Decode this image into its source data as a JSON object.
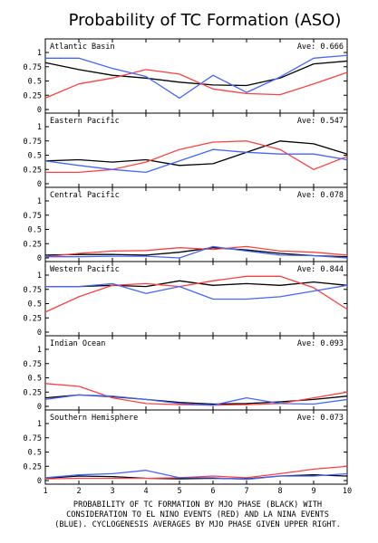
{
  "figure": {
    "title": "Probability of TC Formation (ASO)",
    "caption": [
      "PROBABILITY OF TC FORMATION BY MJO PHASE (BLACK) WITH",
      "CONSIDERATION TO EL NINO EVENTS (RED) AND LA NINA EVENTS",
      "(BLUE). CYCLOGENESIS AVERAGES BY MJO PHASE GIVEN UPPER RIGHT."
    ],
    "x_ticks": [
      "1",
      "2",
      "3",
      "4",
      "5",
      "6",
      "7",
      "8",
      "9",
      "10"
    ]
  },
  "chart_data": [
    {
      "type": "line",
      "title": "Atlantic Basin",
      "annotation": "Ave: 0.666",
      "x": [
        1,
        2,
        3,
        4,
        5,
        6,
        7,
        8,
        9,
        10
      ],
      "ylim": [
        0,
        1
      ],
      "yticks": [
        "0",
        "0.25",
        "0.5",
        "0.75",
        "1"
      ],
      "series": [
        {
          "color": "#000000",
          "values": [
            0.82,
            0.7,
            0.6,
            0.55,
            0.48,
            0.43,
            0.42,
            0.55,
            0.8,
            0.85
          ]
        },
        {
          "color": "#ff4040",
          "values": [
            0.2,
            0.45,
            0.55,
            0.7,
            0.62,
            0.36,
            0.28,
            0.26,
            0.45,
            0.65
          ]
        },
        {
          "color": "#4466ff",
          "values": [
            0.9,
            0.9,
            0.72,
            0.58,
            0.2,
            0.6,
            0.3,
            0.57,
            0.9,
            0.95
          ]
        }
      ]
    },
    {
      "type": "line",
      "title": "Eastern Pacific",
      "annotation": "Ave: 0.547",
      "x": [
        1,
        2,
        3,
        4,
        5,
        6,
        7,
        8,
        9,
        10
      ],
      "ylim": [
        0,
        1
      ],
      "yticks": [
        "0",
        "0.25",
        "0.5",
        "0.75",
        "1"
      ],
      "series": [
        {
          "color": "#000000",
          "values": [
            0.4,
            0.42,
            0.38,
            0.42,
            0.32,
            0.35,
            0.55,
            0.75,
            0.7,
            0.52
          ]
        },
        {
          "color": "#ff4040",
          "values": [
            0.2,
            0.2,
            0.25,
            0.38,
            0.6,
            0.73,
            0.75,
            0.6,
            0.25,
            0.48
          ]
        },
        {
          "color": "#4466ff",
          "values": [
            0.4,
            0.32,
            0.25,
            0.2,
            0.4,
            0.6,
            0.55,
            0.52,
            0.52,
            0.42
          ]
        }
      ]
    },
    {
      "type": "line",
      "title": "Central Pacific",
      "annotation": "Ave: 0.078",
      "x": [
        1,
        2,
        3,
        4,
        5,
        6,
        7,
        8,
        9,
        10
      ],
      "ylim": [
        0,
        1
      ],
      "yticks": [
        "0",
        "0.25",
        "0.5",
        "0.75",
        "1"
      ],
      "series": [
        {
          "color": "#000000",
          "values": [
            0.05,
            0.06,
            0.06,
            0.05,
            0.1,
            0.18,
            0.14,
            0.08,
            0.04,
            0.02
          ]
        },
        {
          "color": "#ff4040",
          "values": [
            0.02,
            0.08,
            0.12,
            0.13,
            0.18,
            0.15,
            0.2,
            0.12,
            0.1,
            0.05
          ]
        },
        {
          "color": "#4466ff",
          "values": [
            0.02,
            0.02,
            0.03,
            0.03,
            0.0,
            0.2,
            0.12,
            0.05,
            0.04,
            0.0
          ]
        }
      ]
    },
    {
      "type": "line",
      "title": "Western Pacific",
      "annotation": "Ave: 0.844",
      "x": [
        1,
        2,
        3,
        4,
        5,
        6,
        7,
        8,
        9,
        10
      ],
      "ylim": [
        0,
        1
      ],
      "yticks": [
        "0",
        "0.25",
        "0.5",
        "0.75",
        "1"
      ],
      "series": [
        {
          "color": "#000000",
          "values": [
            0.8,
            0.8,
            0.82,
            0.8,
            0.9,
            0.82,
            0.85,
            0.82,
            0.88,
            0.82
          ]
        },
        {
          "color": "#ff4040",
          "values": [
            0.35,
            0.62,
            0.82,
            0.85,
            0.8,
            0.9,
            0.98,
            0.98,
            0.78,
            0.4
          ]
        },
        {
          "color": "#4466ff",
          "values": [
            0.8,
            0.8,
            0.85,
            0.68,
            0.8,
            0.58,
            0.58,
            0.62,
            0.72,
            0.82
          ]
        }
      ]
    },
    {
      "type": "line",
      "title": "Indian Ocean",
      "annotation": "Ave: 0.093",
      "x": [
        1,
        2,
        3,
        4,
        5,
        6,
        7,
        8,
        9,
        10
      ],
      "ylim": [
        0,
        1
      ],
      "yticks": [
        "0",
        "0.25",
        "0.5",
        "0.75",
        "1"
      ],
      "series": [
        {
          "color": "#000000",
          "values": [
            0.15,
            0.2,
            0.17,
            0.12,
            0.07,
            0.04,
            0.05,
            0.08,
            0.12,
            0.18
          ]
        },
        {
          "color": "#ff4040",
          "values": [
            0.4,
            0.35,
            0.15,
            0.05,
            0.03,
            0.02,
            0.03,
            0.05,
            0.15,
            0.25
          ]
        },
        {
          "color": "#4466ff",
          "values": [
            0.12,
            0.2,
            0.18,
            0.12,
            0.05,
            0.02,
            0.15,
            0.05,
            0.04,
            0.12
          ]
        }
      ]
    },
    {
      "type": "line",
      "title": "Southern Hemisphere",
      "annotation": "Ave: 0.073",
      "x": [
        1,
        2,
        3,
        4,
        5,
        6,
        7,
        8,
        9,
        10
      ],
      "ylim": [
        0,
        1
      ],
      "yticks": [
        "0",
        "0.25",
        "0.5",
        "0.75",
        "1"
      ],
      "series": [
        {
          "color": "#000000",
          "values": [
            0.04,
            0.08,
            0.07,
            0.04,
            0.03,
            0.04,
            0.03,
            0.08,
            0.1,
            0.08
          ]
        },
        {
          "color": "#ff4040",
          "values": [
            0.03,
            0.04,
            0.04,
            0.04,
            0.05,
            0.08,
            0.05,
            0.12,
            0.2,
            0.25
          ]
        },
        {
          "color": "#4466ff",
          "values": [
            0.05,
            0.1,
            0.12,
            0.18,
            0.05,
            0.05,
            0.02,
            0.08,
            0.08,
            0.12
          ]
        }
      ]
    }
  ]
}
